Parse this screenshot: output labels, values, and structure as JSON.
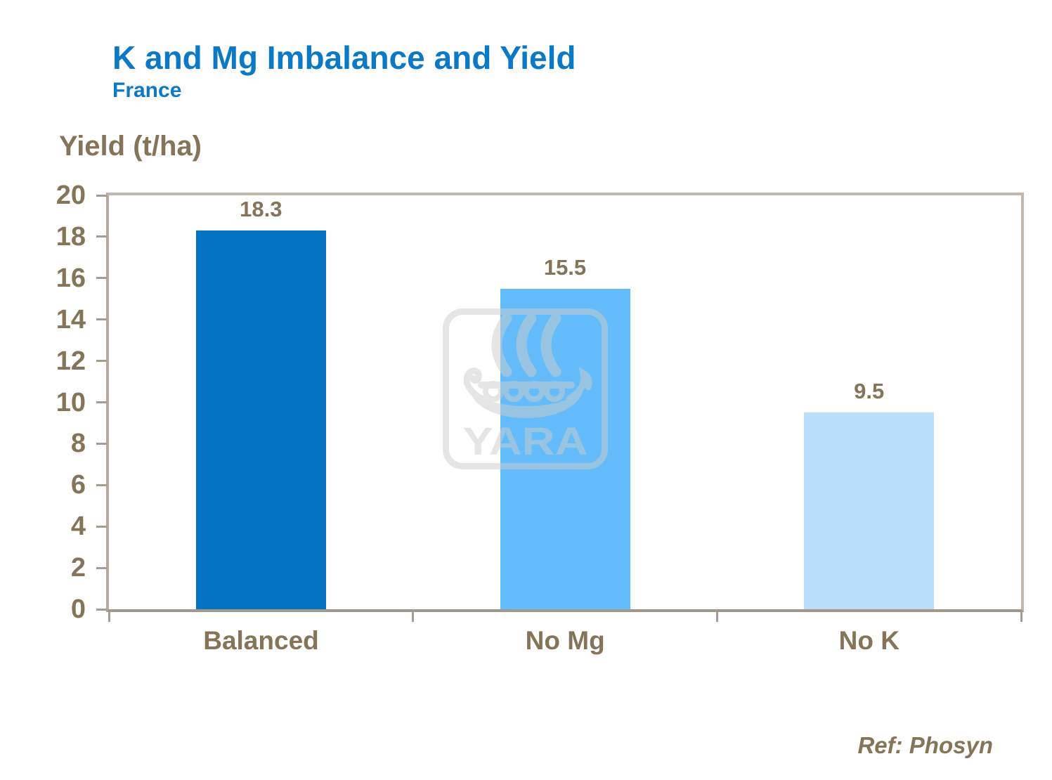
{
  "header": {
    "title": "K and Mg Imbalance and Yield",
    "subtitle": "France"
  },
  "footer": {
    "reference": "Ref: Phosyn"
  },
  "watermark": {
    "text": "YARA"
  },
  "colors": {
    "title_blue": "#0b79c6",
    "label_brown": "#867459",
    "frame_taupe": "#b3a89a",
    "tick_taupe": "#a89c8e",
    "watermark_gray": "#cccccc",
    "bar_colors": [
      "#0473c4",
      "#64bcfa",
      "#b8defc"
    ]
  },
  "chart_data": {
    "type": "bar",
    "title": "K and Mg Imbalance and Yield",
    "subtitle": "France",
    "categories": [
      "Balanced",
      "No Mg",
      "No K"
    ],
    "values": [
      18.3,
      15.5,
      9.5
    ],
    "value_labels": [
      "18.3",
      "15.5",
      "9.5"
    ],
    "bar_colors": [
      "#0473c4",
      "#64bcfa",
      "#b8defc"
    ],
    "xlabel": "",
    "ylabel": "Yield (t/ha)",
    "ylim": [
      0,
      20
    ],
    "ytick_step": 2,
    "ytick_labels": [
      "0",
      "2",
      "4",
      "6",
      "8",
      "10",
      "12",
      "14",
      "16",
      "18",
      "20"
    ],
    "grid": false,
    "legend": false,
    "annotation": "Ref: Phosyn"
  }
}
